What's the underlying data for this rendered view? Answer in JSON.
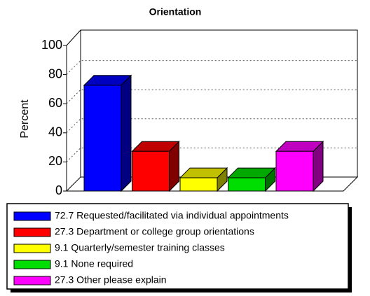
{
  "chart_data": {
    "type": "bar3d",
    "title": "Orientation",
    "y_label": "Percent",
    "categories": [
      "72.7 Requested/facilitated via individual appointments",
      "27.3 Department or college group orientations",
      "9.1 Quarterly/semester training classes",
      "9.1 None required",
      "27.3 Other please explain"
    ],
    "values": [
      72.7,
      27.3,
      9.1,
      9.1,
      27.3
    ],
    "colors": [
      "#0000ff",
      "#ff0000",
      "#ffff00",
      "#00dd00",
      "#ff00ff"
    ],
    "side_colors": [
      "#000080",
      "#800000",
      "#808000",
      "#007000",
      "#800080"
    ],
    "top_colors": [
      "#0000c0",
      "#c00000",
      "#c0c000",
      "#00a800",
      "#c000c0"
    ],
    "ylim": [
      0,
      100
    ],
    "yticks": [
      0,
      20,
      40,
      60,
      80,
      100
    ],
    "grid": true
  }
}
